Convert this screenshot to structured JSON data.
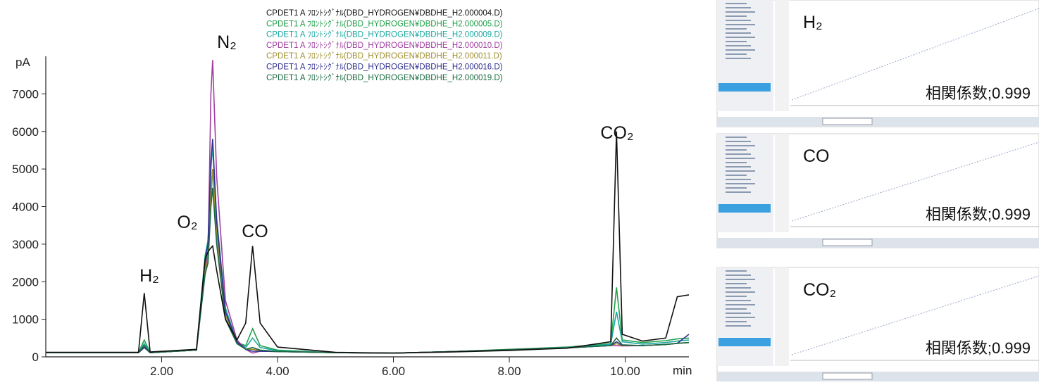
{
  "chart_data": {
    "type": "line",
    "xlabel": "min",
    "ylabel": "pA",
    "xlim": [
      0,
      11.1
    ],
    "ylim": [
      0,
      8000
    ],
    "xticks": [
      {
        "value": 2,
        "label": "2.00"
      },
      {
        "value": 4,
        "label": "4.00"
      },
      {
        "value": 6,
        "label": "6.00"
      },
      {
        "value": 8,
        "label": "8.00"
      },
      {
        "value": 10,
        "label": "10.00"
      }
    ],
    "yticks": [
      0,
      1000,
      2000,
      3000,
      4000,
      5000,
      6000,
      7000
    ],
    "annotations": [
      "H₂",
      "O₂",
      "N₂",
      "CO",
      "CO₂"
    ],
    "x": [
      0,
      1.6,
      1.7,
      1.8,
      2.6,
      2.75,
      2.8,
      2.85,
      2.88,
      2.95,
      3.1,
      3.3,
      3.45,
      3.57,
      3.7,
      4.0,
      5,
      6,
      7,
      8,
      9,
      9.75,
      9.85,
      9.95,
      10.3,
      10.7,
      10.9,
      11.1
    ],
    "series": [
      {
        "name": "CPDET1 A ﾌﾛﾝﾄｼｸﾞﾅﾙ(DBD_HYDROGEN¥DBDHE_H2.000004.D)",
        "color": "#111111",
        "values": [
          120,
          120,
          1700,
          130,
          200,
          2600,
          2800,
          2900,
          2950,
          2300,
          1000,
          450,
          900,
          2950,
          900,
          260,
          120,
          100,
          130,
          170,
          230,
          400,
          6000,
          600,
          420,
          500,
          1600,
          1650
        ]
      },
      {
        "name": "CPDET1 A ﾌﾛﾝﾄｼｸﾞﾅﾙ(DBD_HYDROGEN¥DBDHE_H2.000005.D)",
        "color": "#22a04a",
        "values": [
          110,
          110,
          450,
          110,
          180,
          2500,
          2800,
          4200,
          5000,
          3500,
          1200,
          380,
          300,
          750,
          300,
          180,
          110,
          100,
          140,
          200,
          260,
          350,
          1850,
          450,
          380,
          430,
          480,
          500
        ]
      },
      {
        "name": "CPDET1 A ﾌﾛﾝﾄｼｸﾞﾅﾙ(DBD_HYDROGEN¥DBDHE_H2.000009.D)",
        "color": "#1aa8a0",
        "values": [
          110,
          110,
          350,
          110,
          180,
          2700,
          3100,
          5000,
          5600,
          3700,
          1300,
          400,
          250,
          500,
          250,
          160,
          110,
          100,
          140,
          190,
          250,
          330,
          1200,
          400,
          340,
          380,
          420,
          450
        ]
      },
      {
        "name": "CPDET1 A ﾌﾛﾝﾄｼｸﾞﾅﾙ(DBD_HYDROGEN¥DBDHE_H2.000010.D)",
        "color": "#a040a0",
        "values": [
          110,
          110,
          250,
          110,
          180,
          2400,
          2700,
          7000,
          7900,
          4800,
          1500,
          450,
          200,
          100,
          150,
          140,
          110,
          100,
          140,
          190,
          240,
          300,
          300,
          290,
          300,
          330,
          360,
          380
        ]
      },
      {
        "name": "CPDET1 A ﾌﾛﾝﾄｼｸﾞﾅﾙ(DBD_HYDROGEN¥DBDHE_H2.000011.D)",
        "color": "#a09030",
        "values": [
          110,
          110,
          250,
          110,
          180,
          2300,
          2600,
          4400,
          5000,
          3300,
          1100,
          380,
          200,
          200,
          170,
          140,
          110,
          100,
          140,
          190,
          240,
          300,
          350,
          300,
          300,
          330,
          360,
          380
        ]
      },
      {
        "name": "CPDET1 A ﾌﾛﾝﾄｼｸﾞﾅﾙ(DBD_HYDROGEN¥DBDHE_H2.000016.D)",
        "color": "#303090",
        "values": [
          110,
          110,
          250,
          110,
          180,
          2600,
          3000,
          5200,
          5800,
          3600,
          1200,
          400,
          200,
          150,
          150,
          140,
          110,
          100,
          140,
          190,
          240,
          300,
          400,
          310,
          300,
          330,
          360,
          600
        ]
      },
      {
        "name": "CPDET1 A ﾌﾛﾝﾄｼｸﾞﾅﾙ(DBD_HYDROGEN¥DBDHE_H2.000019.D)",
        "color": "#1a6a40",
        "values": [
          110,
          110,
          300,
          110,
          180,
          2200,
          2500,
          4000,
          4500,
          3000,
          1000,
          350,
          200,
          250,
          180,
          140,
          110,
          100,
          140,
          190,
          240,
          300,
          500,
          320,
          300,
          330,
          360,
          380
        ]
      }
    ]
  },
  "calibration_panels": [
    {
      "label": "H₂",
      "text": "相関係数;0.999"
    },
    {
      "label": "CO",
      "text": "相関係数;0.999"
    },
    {
      "label": "CO₂",
      "text": "相関係数;0.999"
    }
  ]
}
